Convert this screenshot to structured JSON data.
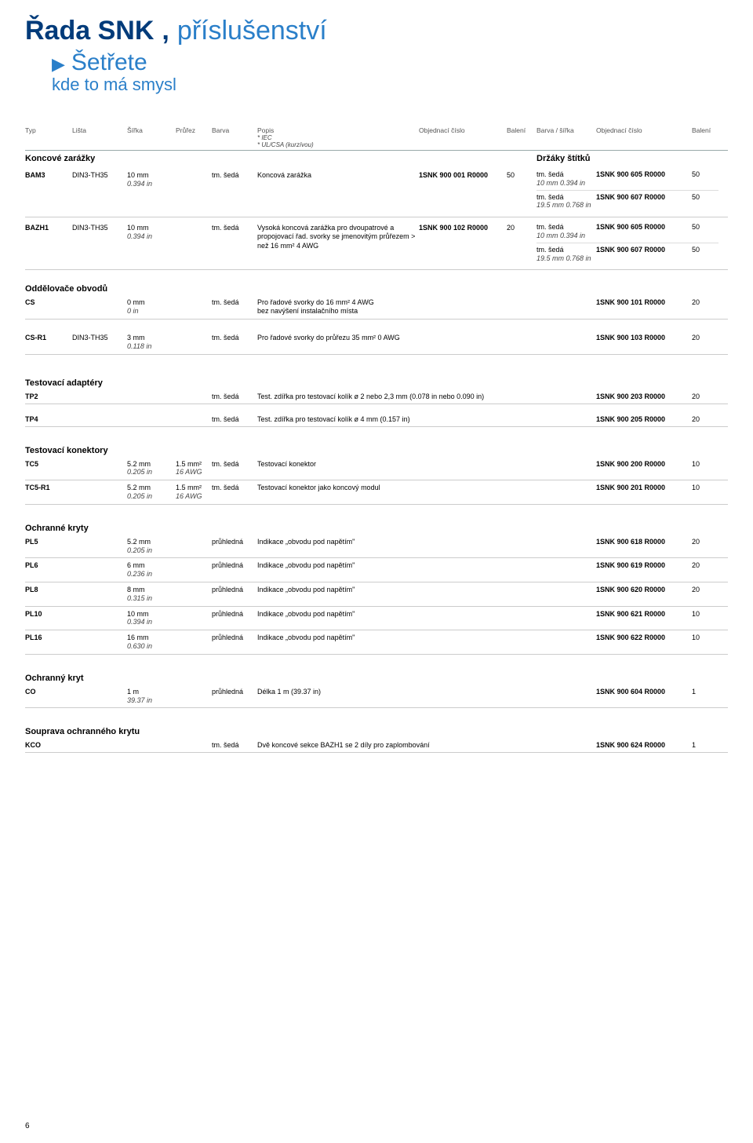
{
  "title": {
    "strong": "Řada SNK",
    "sep": ",",
    "light": "příslušenství"
  },
  "subtitle": {
    "tri": "▶",
    "strong": "Šetřete",
    "light": "kde to má smysl"
  },
  "columns": {
    "c1": "Typ",
    "c2": "Lišta",
    "c3": "Šířka",
    "c4": "Průřez",
    "c5": "Barva",
    "c6a": "Popis",
    "c6b_iec": "* IEC",
    "c6b_ul": "* UL/CSA (kurzívou)",
    "c7": "Objednací číslo",
    "c8": "Balení",
    "c9": "Barva / šířka",
    "c10": "Objednací číslo",
    "c11": "Balení"
  },
  "end_stops": {
    "title": "Koncové zarážky",
    "right_title": "Držáky štítků",
    "rows": [
      {
        "name": "BAM3",
        "rail": "DIN3-TH35",
        "width1": "10 mm",
        "width2": "0.394 in",
        "color": "tm. šedá",
        "desc": "Koncová zarážka",
        "order": "1SNK 900 001 R0000",
        "qty": "50",
        "right": [
          {
            "bw1": "tm. šedá",
            "bw2": "10 mm 0.394 in",
            "order": "1SNK 900 605 R0000",
            "qty": "50"
          },
          {
            "bw1": "tm. šedá",
            "bw2": "19.5 mm 0.768 in",
            "order": "1SNK 900 607 R0000",
            "qty": "50"
          }
        ]
      },
      {
        "name": "BAZH1",
        "rail": "DIN3-TH35",
        "width1": "10 mm",
        "width2": "0.394 in",
        "color": "tm. šedá",
        "desc": "Vysoká koncová zarážka pro dvoupatrové a propojovací řad. svorky se jmenovitým průřezem > než 16 mm² 4 AWG",
        "order": "1SNK 900 102 R0000",
        "qty": "20",
        "right": [
          {
            "bw1": "tm. šedá",
            "bw2": "10 mm 0.394 in",
            "order": "1SNK 900 605 R0000",
            "qty": "50"
          },
          {
            "bw1": "tm. šedá",
            "bw2": "19.5 mm 0.768 in",
            "order": "1SNK 900 607 R0000",
            "qty": "50"
          }
        ]
      }
    ]
  },
  "separators": {
    "title": "Oddělovače obvodů",
    "rows": [
      {
        "name": "CS",
        "rail": "",
        "width1": "0 mm",
        "width2": "0 in",
        "color": "tm. šedá",
        "desc1": "Pro řadové svorky do 16 mm² 4 AWG",
        "desc2": "bez navýšení instalačního místa",
        "order": "1SNK 900 101 R0000",
        "qty": "20"
      },
      {
        "name": "CS-R1",
        "rail": "DIN3-TH35",
        "width1": "3 mm",
        "width2": "0.118 in",
        "color": "tm. šedá",
        "desc": "Pro řadové svorky do průřezu 35 mm² 0 AWG",
        "order": "1SNK 900 103 R0000",
        "qty": "20"
      }
    ]
  },
  "adapters": {
    "title": "Testovací adaptéry",
    "rows": [
      {
        "name": "TP2",
        "color": "tm. šedá",
        "desc": "Test. zdířka pro testovací kolík ø 2 nebo 2,3 mm (0.078 in nebo 0.090 in)",
        "order": "1SNK 900 203 R0000",
        "qty": "20"
      },
      {
        "name": "TP4",
        "color": "tm. šedá",
        "desc": "Test. zdířka pro testovací kolík ø 4 mm (0.157 in)",
        "order": "1SNK 900 205 R0000",
        "qty": "20"
      }
    ]
  },
  "connectors": {
    "title": "Testovací konektory",
    "rows": [
      {
        "name": "TC5",
        "width1": "5.2 mm",
        "width2": "0.205 in",
        "cs1": "1.5 mm²",
        "cs2": "16 AWG",
        "color": "tm. šedá",
        "desc": "Testovací konektor",
        "order": "1SNK 900 200 R0000",
        "qty": "10"
      },
      {
        "name": "TC5-R1",
        "width1": "5.2 mm",
        "width2": "0.205 in",
        "cs1": "1.5 mm²",
        "cs2": "16 AWG",
        "color": "tm. šedá",
        "desc": "Testovací konektor jako koncový modul",
        "order": "1SNK 900 201 R0000",
        "qty": "10"
      }
    ]
  },
  "covers": {
    "title": "Ochranné kryty",
    "rows": [
      {
        "name": "PL5",
        "width1": "5.2 mm",
        "width2": "0.205 in",
        "color": "průhledná",
        "desc": "Indikace „obvodu pod napětím\"",
        "order": "1SNK 900 618 R0000",
        "qty": "20"
      },
      {
        "name": "PL6",
        "width1": "6 mm",
        "width2": "0.236 in",
        "color": "průhledná",
        "desc": "Indikace „obvodu pod napětím\"",
        "order": "1SNK 900 619 R0000",
        "qty": "20"
      },
      {
        "name": "PL8",
        "width1": "8 mm",
        "width2": "0.315 in",
        "color": "průhledná",
        "desc": "Indikace „obvodu pod napětím\"",
        "order": "1SNK 900 620 R0000",
        "qty": "20"
      },
      {
        "name": "PL10",
        "width1": "10 mm",
        "width2": "0.394 in",
        "color": "průhledná",
        "desc": "Indikace „obvodu pod napětím\"",
        "order": "1SNK 900 621 R0000",
        "qty": "10"
      },
      {
        "name": "PL16",
        "width1": "16 mm",
        "width2": "0.630 in",
        "color": "průhledná",
        "desc": "Indikace „obvodu pod napětím\"",
        "order": "1SNK 900 622 R0000",
        "qty": "10"
      }
    ]
  },
  "cover1": {
    "title": "Ochranný kryt",
    "rows": [
      {
        "name": "CO",
        "width1": "1 m",
        "width2": "39.37 in",
        "color": "průhledná",
        "desc": "Délka 1 m (39.37 in)",
        "order": "1SNK 900 604 R0000",
        "qty": "1"
      }
    ]
  },
  "kit": {
    "title": "Souprava ochranného krytu",
    "rows": [
      {
        "name": "KCO",
        "color": "tm. šedá",
        "desc": "Dvě koncové sekce BAZH1 se 2 díly pro zaplombování",
        "order": "1SNK 900 624 R0000",
        "qty": "1"
      }
    ]
  },
  "page": "6"
}
